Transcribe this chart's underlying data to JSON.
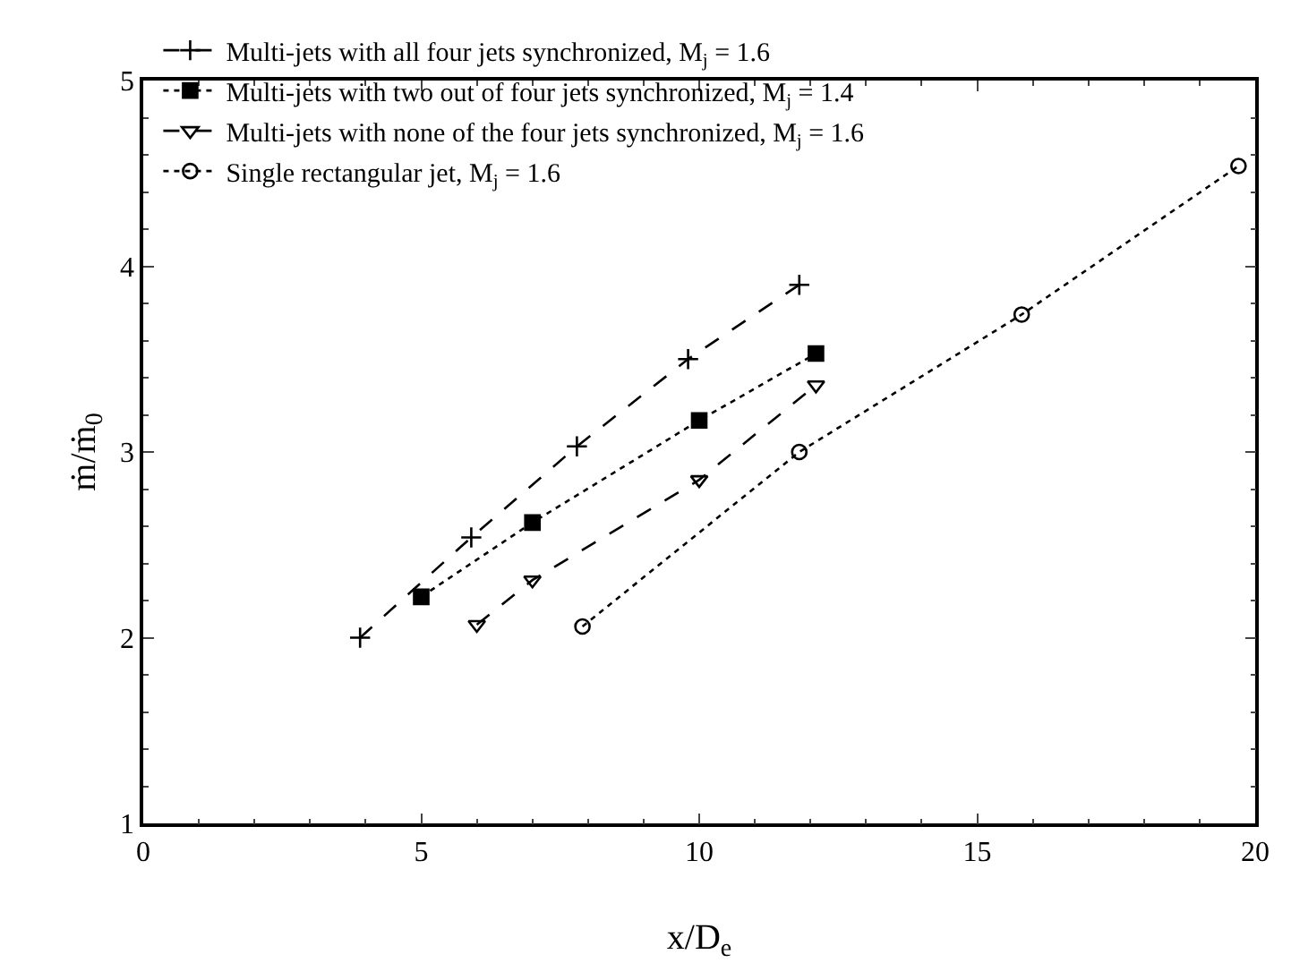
{
  "chart_data": {
    "type": "line",
    "xlabel": "x/D$_{e}$",
    "ylabel": "ṁ/ṁ$_{0}$",
    "xlim": [
      0,
      20
    ],
    "xticks": [
      0,
      5,
      10,
      15,
      20
    ],
    "ylim": [
      1,
      5
    ],
    "yticks": [
      1,
      2,
      3,
      4,
      5
    ],
    "grid": false,
    "legend": "top left",
    "series": [
      {
        "name": "Multi-jets with all four jets synchronized, M$_{j}$ = 1.6",
        "color": "#000000",
        "marker": "cross",
        "line_style": "dashed",
        "x": [
          3.9,
          5.9,
          7.8,
          9.8,
          11.8
        ],
        "values": [
          2.0,
          2.54,
          3.03,
          3.5,
          3.9
        ]
      },
      {
        "name": "Multi-jets with two out of four jets synchronized, M$_{j}$ = 1.4",
        "color": "#000000",
        "marker": "square",
        "line_style": "dotted",
        "x": [
          5.0,
          7.0,
          10.0,
          12.1
        ],
        "values": [
          2.22,
          2.62,
          3.17,
          3.53
        ]
      },
      {
        "name": "Multi-jets with none of the four jets synchronized, M$_{j}$ = 1.6",
        "color": "#000000",
        "marker": "triangle",
        "line_style": "dashed",
        "x": [
          6.0,
          7.0,
          10.0,
          12.1
        ],
        "values": [
          2.07,
          2.31,
          2.85,
          3.36
        ]
      },
      {
        "name": "Single rectangular jet, M$_{j}$ = 1.6",
        "color": "#000000",
        "marker": "circle",
        "line_style": "dotted",
        "x": [
          7.9,
          11.8,
          15.8,
          19.7
        ],
        "values": [
          2.06,
          3.0,
          3.74,
          4.54
        ]
      }
    ]
  }
}
